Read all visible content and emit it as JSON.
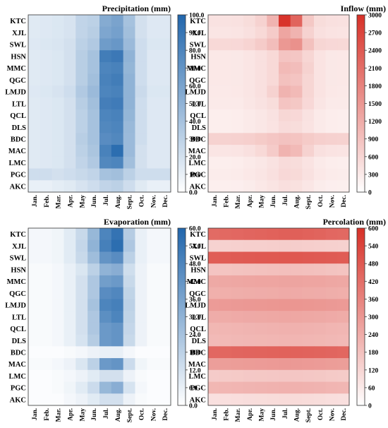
{
  "chart_data": [
    {
      "type": "heatmap",
      "title": "Precipitation (mm)",
      "rows": [
        "KTC",
        "XJL",
        "SWL",
        "HSN",
        "MMC",
        "QGC",
        "LMJD",
        "LTL",
        "QCL",
        "DLS",
        "BDC",
        "MAC",
        "LMC",
        "PGC",
        "AKC"
      ],
      "columns": [
        "Jan.",
        "Feb.",
        "Mar.",
        "Apr.",
        "May",
        "Jun.",
        "Jul.",
        "Aug.",
        "Sept.",
        "Oct.",
        "Nov.",
        "Dec."
      ],
      "zlim": [
        0,
        100
      ],
      "colorbar_ticks": [
        "0.0",
        "10.0",
        "20.0",
        "30.0",
        "40.0",
        "50.0",
        "60.0",
        "70.0",
        "80.0",
        "90.0",
        "100.0"
      ],
      "colors": {
        "low": "#ffffff",
        "high": "#2166ac"
      },
      "values": [
        [
          14,
          15,
          16,
          18,
          28,
          30,
          55,
          60,
          40,
          20,
          15,
          15
        ],
        [
          14,
          15,
          16,
          18,
          28,
          32,
          58,
          62,
          42,
          20,
          15,
          15
        ],
        [
          15,
          16,
          17,
          20,
          30,
          35,
          65,
          68,
          45,
          22,
          16,
          16
        ],
        [
          14,
          15,
          16,
          20,
          32,
          40,
          85,
          88,
          50,
          22,
          15,
          15
        ],
        [
          14,
          15,
          16,
          20,
          32,
          40,
          80,
          82,
          48,
          22,
          15,
          15
        ],
        [
          14,
          15,
          16,
          20,
          32,
          42,
          82,
          85,
          50,
          22,
          15,
          15
        ],
        [
          15,
          16,
          18,
          22,
          35,
          45,
          80,
          82,
          50,
          24,
          16,
          16
        ],
        [
          14,
          15,
          16,
          20,
          32,
          42,
          84,
          86,
          50,
          22,
          15,
          15
        ],
        [
          14,
          15,
          16,
          20,
          30,
          40,
          80,
          82,
          48,
          22,
          15,
          15
        ],
        [
          14,
          15,
          16,
          20,
          30,
          40,
          78,
          80,
          46,
          22,
          15,
          15
        ],
        [
          14,
          15,
          16,
          20,
          32,
          40,
          75,
          78,
          45,
          22,
          15,
          15
        ],
        [
          14,
          15,
          16,
          20,
          30,
          38,
          82,
          95,
          45,
          20,
          15,
          15
        ],
        [
          14,
          15,
          16,
          20,
          28,
          35,
          78,
          80,
          42,
          20,
          15,
          15
        ],
        [
          22,
          22,
          20,
          22,
          25,
          28,
          40,
          42,
          30,
          22,
          22,
          22
        ],
        [
          10,
          10,
          12,
          14,
          18,
          22,
          28,
          30,
          22,
          14,
          10,
          10
        ]
      ]
    },
    {
      "type": "heatmap",
      "title": "Inflow (mm)",
      "rows": [
        "KTC",
        "XJL",
        "SWL",
        "HSN",
        "MMC",
        "QGC",
        "LMJD",
        "LTL",
        "QCL",
        "DLS",
        "BDC",
        "MAC",
        "LMC",
        "PGC",
        "AKC"
      ],
      "columns": [
        "Jan.",
        "Feb.",
        "Mar.",
        "Apr.",
        "May",
        "Jun.",
        "Jul.",
        "Aug.",
        "Sept.",
        "Oct.",
        "Nov.",
        "Dec."
      ],
      "zlim": [
        0,
        3000
      ],
      "colorbar_ticks": [
        "0",
        "300",
        "600",
        "900",
        "1200",
        "1500",
        "1800",
        "2100",
        "2400",
        "2700",
        "3000"
      ],
      "colors": {
        "low": "#ffffff",
        "high": "#d73027"
      },
      "values": [
        [
          420,
          420,
          430,
          500,
          650,
          1100,
          2950,
          2250,
          800,
          500,
          450,
          430
        ],
        [
          380,
          380,
          390,
          450,
          550,
          750,
          1300,
          1100,
          650,
          450,
          400,
          390
        ],
        [
          550,
          550,
          560,
          620,
          750,
          950,
          1500,
          1600,
          900,
          600,
          560,
          550
        ],
        [
          330,
          330,
          340,
          380,
          450,
          550,
          850,
          820,
          600,
          400,
          340,
          330
        ],
        [
          330,
          330,
          340,
          380,
          450,
          550,
          1000,
          950,
          650,
          400,
          340,
          330
        ],
        [
          330,
          330,
          340,
          380,
          450,
          550,
          900,
          850,
          600,
          400,
          340,
          330
        ],
        [
          320,
          320,
          330,
          380,
          450,
          650,
          1100,
          1000,
          600,
          400,
          330,
          320
        ],
        [
          300,
          300,
          310,
          360,
          420,
          500,
          850,
          800,
          560,
          380,
          310,
          300
        ],
        [
          250,
          250,
          260,
          300,
          350,
          420,
          580,
          560,
          420,
          300,
          260,
          250
        ],
        [
          250,
          250,
          260,
          300,
          350,
          400,
          520,
          500,
          400,
          300,
          260,
          250
        ],
        [
          650,
          650,
          660,
          700,
          760,
          820,
          880,
          860,
          760,
          700,
          660,
          650
        ],
        [
          380,
          380,
          390,
          450,
          550,
          750,
          1100,
          1000,
          650,
          450,
          400,
          390
        ],
        [
          250,
          250,
          260,
          300,
          350,
          420,
          520,
          500,
          400,
          300,
          260,
          250
        ],
        [
          280,
          280,
          290,
          330,
          380,
          450,
          560,
          540,
          430,
          330,
          290,
          280
        ],
        [
          230,
          230,
          240,
          280,
          330,
          390,
          460,
          440,
          360,
          280,
          240,
          230
        ]
      ]
    },
    {
      "type": "heatmap",
      "title": "Evaporation (mm)",
      "rows": [
        "KTC",
        "XJL",
        "SWL",
        "HSN",
        "MMC",
        "QGC",
        "LMJD",
        "LTL",
        "QCL",
        "DLS",
        "BDC",
        "MAC",
        "LMC",
        "PGC",
        "AKC"
      ],
      "columns": [
        "Jan.",
        "Feb.",
        "Mar.",
        "Apr.",
        "May",
        "Jun.",
        "Jul.",
        "Aug.",
        "Sept.",
        "Oct.",
        "Nov.",
        "Dec."
      ],
      "zlim": [
        0,
        60
      ],
      "colorbar_ticks": [
        "0.0",
        "6.0",
        "12.0",
        "18.0",
        "24.0",
        "30.0",
        "36.0",
        "42.0",
        "48.0",
        "54.0",
        "60.0"
      ],
      "colors": {
        "low": "#ffffff",
        "high": "#2166ac"
      },
      "values": [
        [
          3,
          3,
          4,
          8,
          15,
          28,
          48,
          55,
          20,
          6,
          3,
          3
        ],
        [
          3,
          3,
          4,
          8,
          16,
          30,
          50,
          57,
          22,
          6,
          3,
          3
        ],
        [
          3,
          3,
          4,
          8,
          15,
          26,
          42,
          45,
          18,
          6,
          3,
          3
        ],
        [
          2,
          2,
          3,
          6,
          10,
          18,
          30,
          32,
          13,
          5,
          2,
          2
        ],
        [
          2,
          2,
          3,
          6,
          12,
          22,
          38,
          40,
          15,
          5,
          2,
          2
        ],
        [
          2,
          2,
          3,
          6,
          12,
          22,
          45,
          47,
          17,
          5,
          2,
          2
        ],
        [
          2,
          2,
          3,
          6,
          12,
          24,
          48,
          50,
          18,
          5,
          2,
          2
        ],
        [
          2,
          2,
          3,
          6,
          12,
          22,
          44,
          48,
          17,
          5,
          2,
          2
        ],
        [
          2,
          2,
          3,
          6,
          12,
          22,
          40,
          42,
          16,
          5,
          2,
          2
        ],
        [
          2,
          2,
          3,
          6,
          11,
          20,
          40,
          42,
          15,
          5,
          2,
          2
        ],
        [
          1,
          1,
          1,
          2,
          3,
          5,
          6,
          6,
          3,
          1,
          1,
          1
        ],
        [
          2,
          2,
          3,
          5,
          10,
          18,
          40,
          42,
          14,
          4,
          2,
          2
        ],
        [
          1,
          1,
          2,
          3,
          5,
          8,
          12,
          12,
          5,
          2,
          1,
          1
        ],
        [
          1,
          1,
          2,
          4,
          8,
          14,
          28,
          32,
          11,
          3,
          1,
          1
        ],
        [
          1,
          1,
          1,
          3,
          5,
          8,
          12,
          12,
          5,
          2,
          1,
          1
        ]
      ]
    },
    {
      "type": "heatmap",
      "title": "Percolation (mm)",
      "rows": [
        "KTC",
        "XJL",
        "SWL",
        "HSN",
        "MMC",
        "QGC",
        "LMJD",
        "LTL",
        "QCL",
        "DLS",
        "BDC",
        "MAC",
        "LMC",
        "PGC",
        "AKC"
      ],
      "columns": [
        "Jan.",
        "Feb.",
        "Mar.",
        "Apr.",
        "May",
        "Jun.",
        "Jul.",
        "Aug.",
        "Sept.",
        "Oct.",
        "Nov.",
        "Dec."
      ],
      "zlim": [
        0,
        600
      ],
      "colorbar_ticks": [
        "0",
        "60",
        "120",
        "180",
        "240",
        "300",
        "360",
        "420",
        "480",
        "540",
        "600"
      ],
      "colors": {
        "low": "#ffffff",
        "high": "#d73027"
      },
      "values": [
        [
          430,
          435,
          440,
          445,
          450,
          455,
          460,
          462,
          455,
          450,
          440,
          435
        ],
        [
          130,
          132,
          135,
          138,
          140,
          142,
          145,
          145,
          142,
          140,
          135,
          132
        ],
        [
          470,
          472,
          475,
          478,
          480,
          482,
          485,
          485,
          480,
          478,
          475,
          472
        ],
        [
          170,
          172,
          175,
          178,
          180,
          182,
          185,
          185,
          182,
          180,
          175,
          172
        ],
        [
          250,
          252,
          255,
          258,
          260,
          262,
          265,
          265,
          262,
          260,
          255,
          252
        ],
        [
          230,
          232,
          235,
          238,
          240,
          242,
          245,
          245,
          242,
          240,
          235,
          232
        ],
        [
          290,
          292,
          295,
          298,
          300,
          302,
          305,
          305,
          302,
          300,
          295,
          292
        ],
        [
          240,
          242,
          245,
          248,
          250,
          252,
          255,
          255,
          252,
          250,
          245,
          242
        ],
        [
          210,
          212,
          215,
          218,
          220,
          222,
          225,
          225,
          222,
          220,
          215,
          212
        ],
        [
          200,
          202,
          205,
          208,
          210,
          212,
          215,
          215,
          212,
          210,
          205,
          202
        ],
        [
          440,
          442,
          445,
          448,
          450,
          452,
          455,
          455,
          452,
          450,
          445,
          442
        ],
        [
          280,
          282,
          285,
          288,
          290,
          292,
          295,
          295,
          292,
          290,
          285,
          282
        ],
        [
          150,
          152,
          155,
          158,
          160,
          162,
          165,
          165,
          162,
          160,
          155,
          152
        ],
        [
          210,
          212,
          215,
          218,
          220,
          222,
          225,
          225,
          222,
          220,
          215,
          212
        ],
        [
          90,
          92,
          95,
          98,
          100,
          102,
          105,
          105,
          102,
          100,
          95,
          92
        ]
      ]
    }
  ]
}
